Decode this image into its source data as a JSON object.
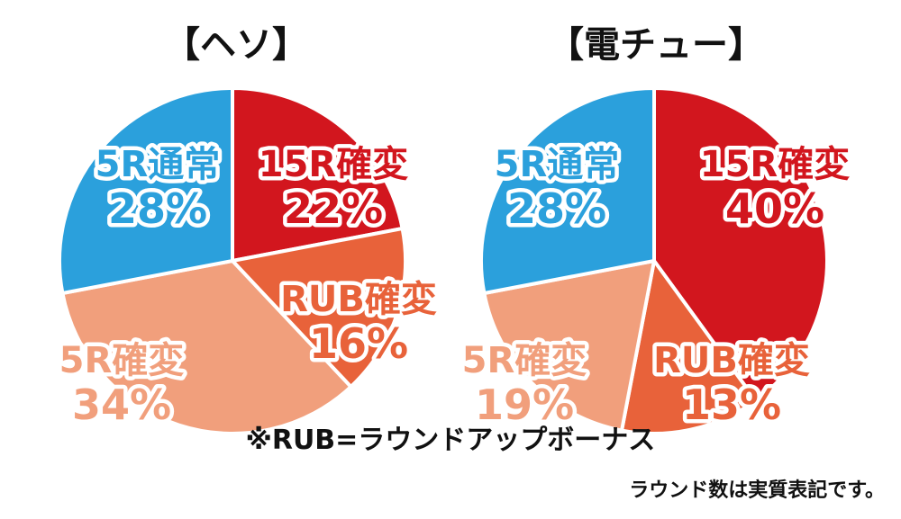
{
  "chart_data": [
    {
      "type": "pie",
      "title": "【ヘソ】",
      "slices": [
        {
          "label": "15R確変",
          "value": 22,
          "text": "22%",
          "color": "#d2161e"
        },
        {
          "label": "RUB確変",
          "value": 16,
          "text": "16%",
          "color": "#e8623a"
        },
        {
          "label": "5R確変",
          "value": 34,
          "text": "34%",
          "color": "#f19f7c"
        },
        {
          "label": "5R通常",
          "value": 28,
          "text": "28%",
          "color": "#2ba0dc"
        }
      ]
    },
    {
      "type": "pie",
      "title": "【電チュー】",
      "slices": [
        {
          "label": "15R確変",
          "value": 40,
          "text": "40%",
          "color": "#d2161e"
        },
        {
          "label": "RUB確変",
          "value": 13,
          "text": "13%",
          "color": "#e8623a"
        },
        {
          "label": "5R確変",
          "value": 19,
          "text": "19%",
          "color": "#f19f7c"
        },
        {
          "label": "5R通常",
          "value": 28,
          "text": "28%",
          "color": "#2ba0dc"
        }
      ]
    }
  ],
  "footnote": "※RUB=ラウンドアップボーナス",
  "source_note": "ラウンド数は実質表記です。"
}
